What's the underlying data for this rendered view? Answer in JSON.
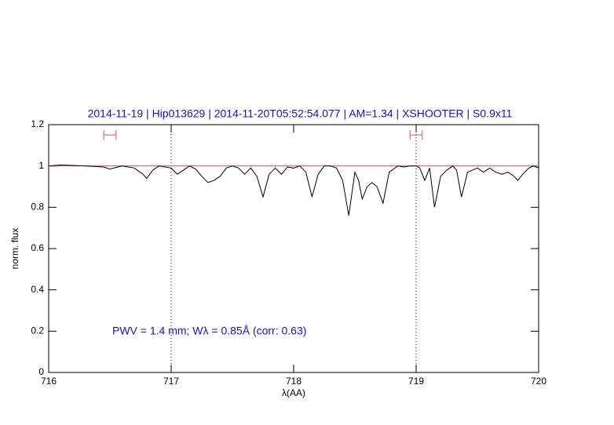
{
  "chart_data": {
    "type": "line",
    "title": "2014-11-19 | Hip013629 | 2014-11-20T05:52:54.077 | AM=1.34 | XSHOOTER | S0.9x11",
    "annotation": "PWV = 1.4 mm; Wλ = 0.85Å (corr: 0.63)",
    "xlabel": "λ(AA)",
    "ylabel": "norm. flux",
    "xlim": [
      716,
      720
    ],
    "ylim": [
      0,
      1.2
    ],
    "xticks": [
      716,
      717,
      718,
      719,
      720
    ],
    "yticks": [
      0,
      0.2,
      0.4,
      0.6,
      0.8,
      1,
      1.2
    ],
    "color": "#000000",
    "x": [
      716.0,
      716.1,
      716.3,
      716.45,
      716.5,
      716.6,
      716.7,
      716.77,
      716.8,
      716.85,
      716.9,
      717.0,
      717.05,
      717.1,
      717.15,
      717.2,
      717.25,
      717.3,
      717.35,
      717.4,
      717.45,
      717.5,
      717.55,
      717.6,
      717.65,
      717.7,
      717.75,
      717.8,
      717.85,
      717.9,
      717.95,
      718.0,
      718.05,
      718.1,
      718.15,
      718.2,
      718.25,
      718.3,
      718.35,
      718.4,
      718.45,
      718.5,
      718.53,
      718.56,
      718.6,
      718.64,
      718.68,
      718.73,
      718.78,
      718.85,
      718.9,
      718.95,
      719.0,
      719.03,
      719.07,
      719.11,
      719.15,
      719.2,
      719.25,
      719.3,
      719.33,
      719.37,
      719.42,
      719.5,
      719.55,
      719.6,
      719.65,
      719.7,
      719.75,
      719.8,
      719.83,
      719.87,
      719.92,
      719.96,
      720.0
    ],
    "values": [
      1.0,
      1.005,
      1.0,
      0.995,
      0.985,
      1.0,
      0.99,
      0.96,
      0.94,
      0.98,
      1.0,
      0.99,
      0.96,
      0.98,
      1.0,
      0.985,
      0.95,
      0.92,
      0.93,
      0.95,
      0.99,
      1.0,
      0.99,
      0.96,
      0.99,
      0.95,
      0.85,
      0.96,
      0.99,
      0.96,
      0.995,
      0.99,
      1.0,
      0.97,
      0.85,
      0.96,
      1.0,
      1.0,
      0.99,
      0.93,
      0.76,
      0.97,
      0.93,
      0.84,
      0.9,
      0.92,
      0.9,
      0.82,
      0.97,
      1.0,
      0.995,
      1.0,
      1.0,
      0.99,
      0.93,
      0.99,
      0.8,
      0.95,
      0.98,
      1.0,
      0.98,
      0.85,
      0.97,
      0.99,
      0.97,
      0.99,
      0.97,
      0.96,
      0.97,
      0.95,
      0.93,
      0.96,
      0.99,
      1.0,
      0.99
    ],
    "continuum": {
      "value": 1,
      "color": "#e05050"
    },
    "vlines": [
      717,
      719
    ],
    "markers": [
      {
        "x": [
          716.45,
          716.55
        ],
        "y": 1.15,
        "color": "#e05050"
      },
      {
        "x": [
          718.95,
          719.05
        ],
        "y": 1.15,
        "color": "#e05050"
      }
    ]
  }
}
